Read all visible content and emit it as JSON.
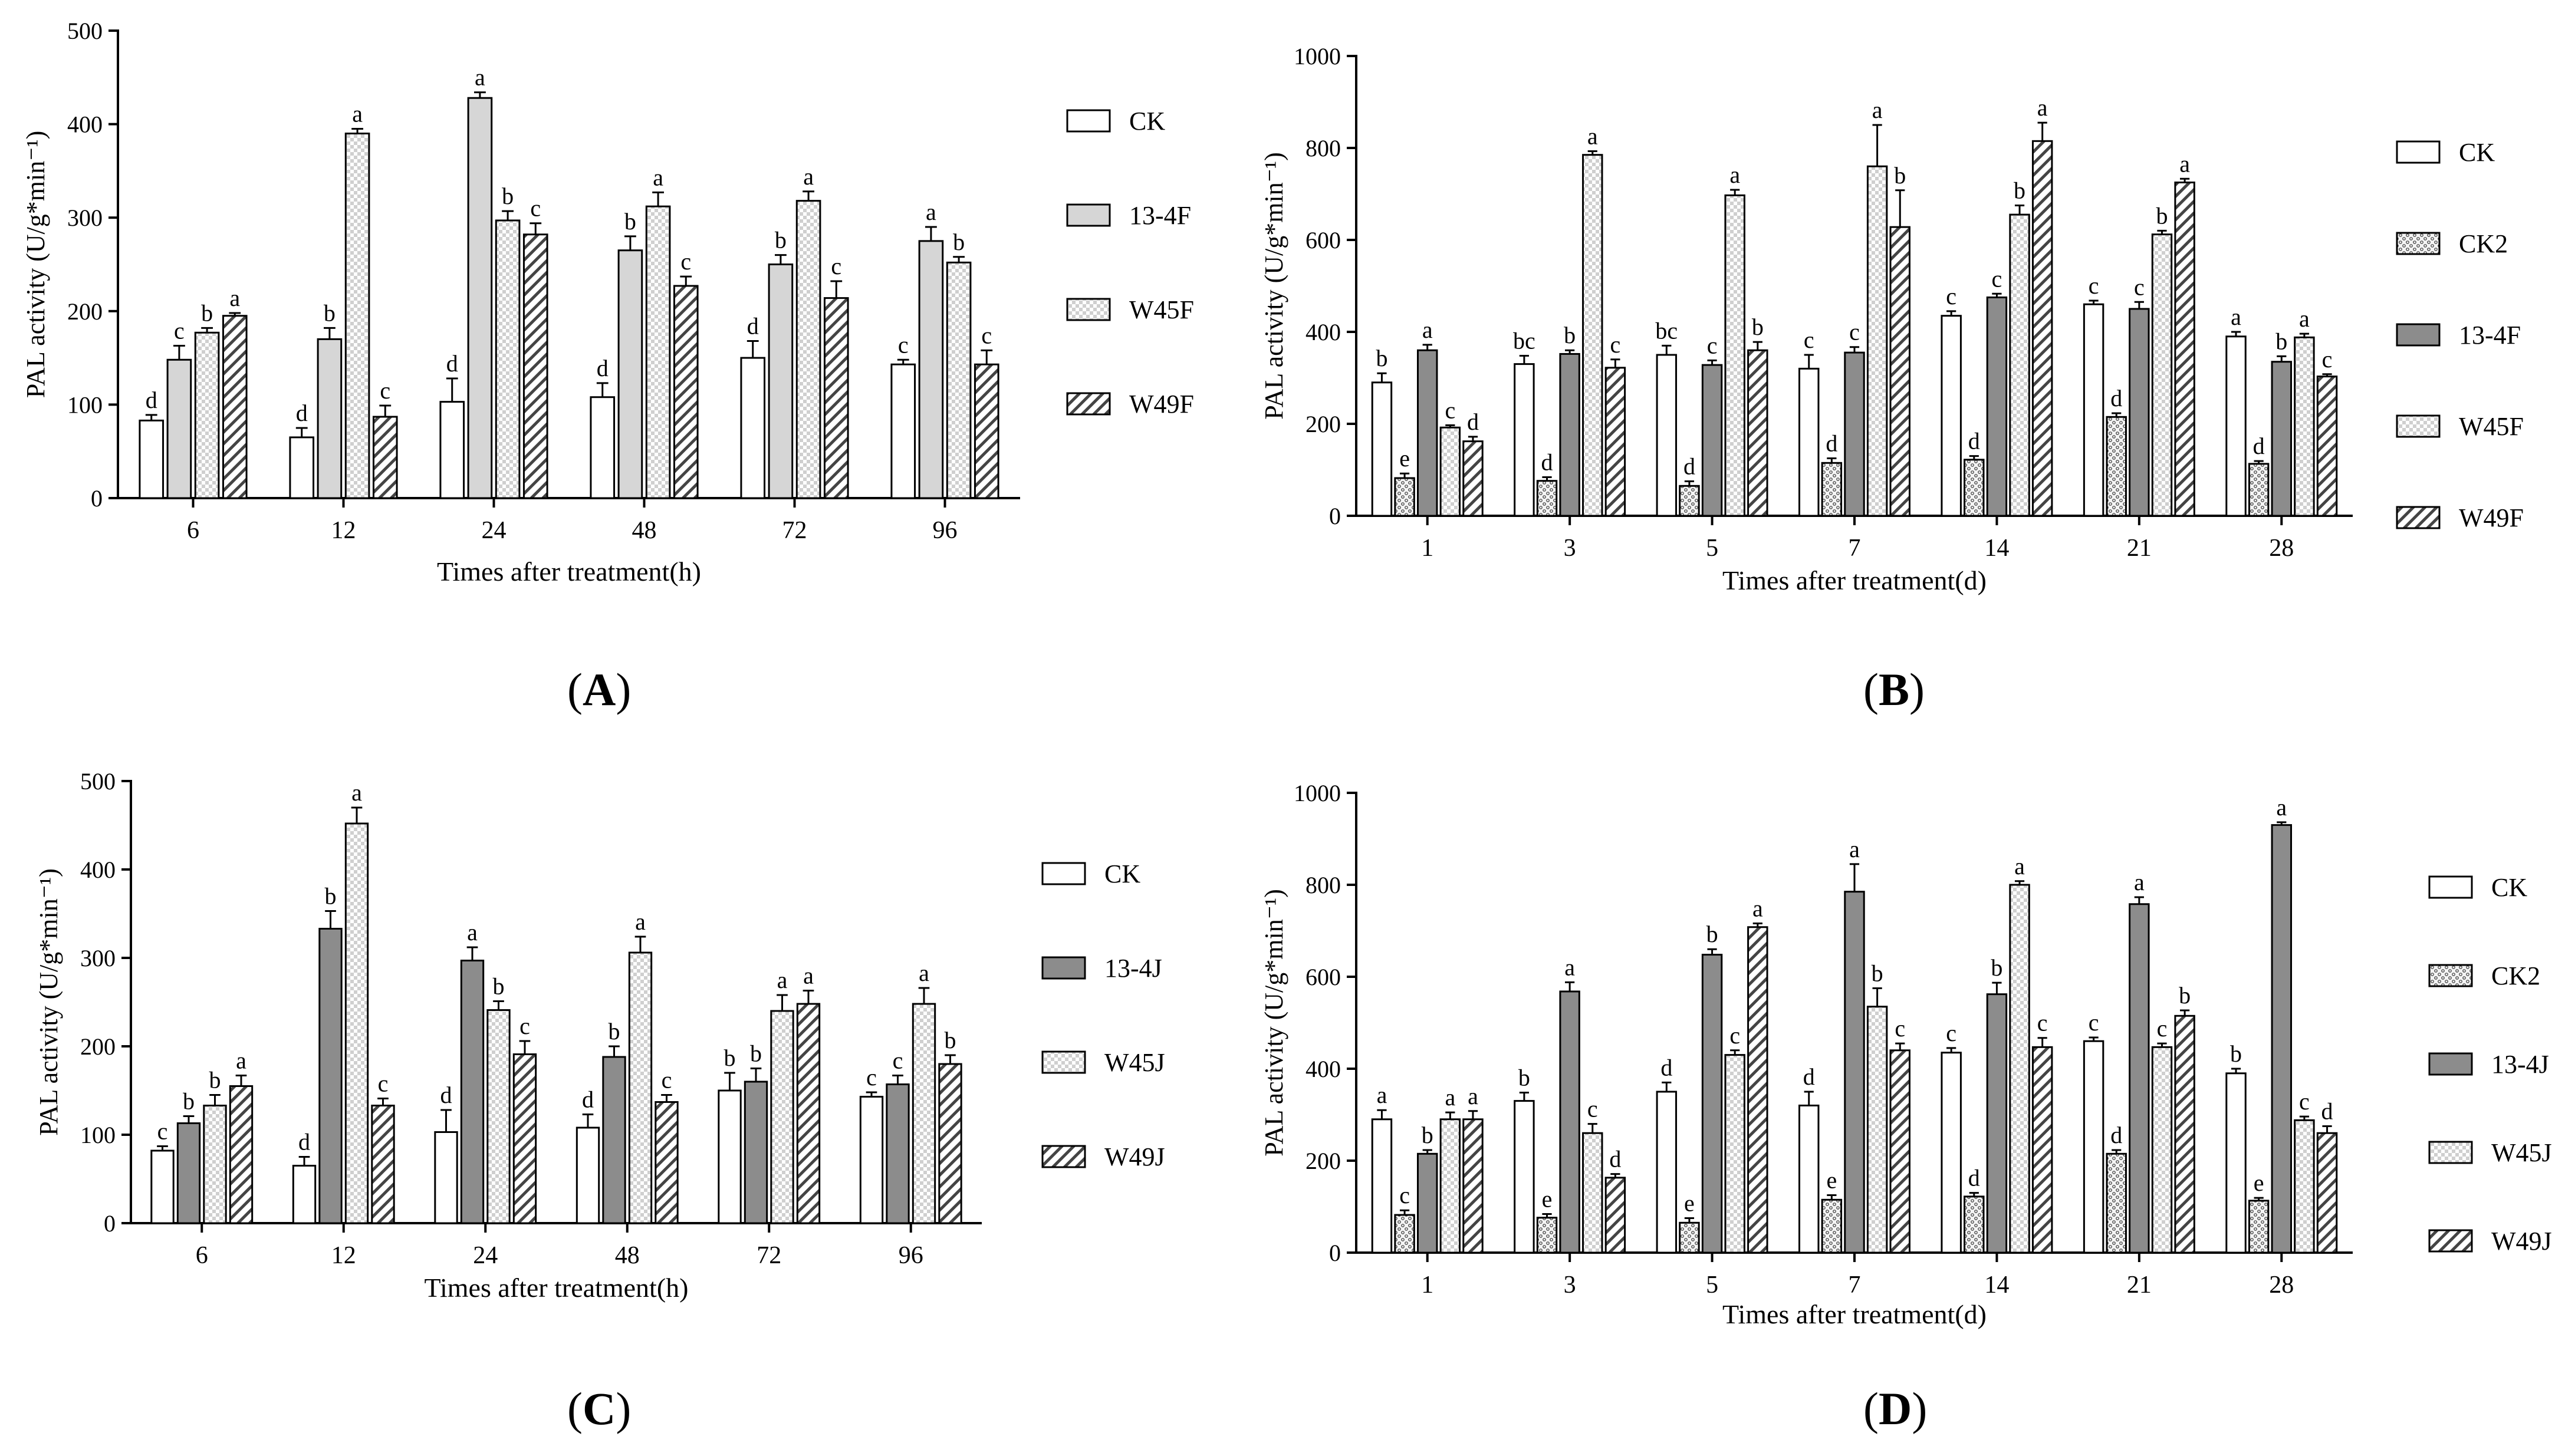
{
  "colors": {
    "axis": "#000000",
    "white_fill": "#ffffff",
    "gray_light": "#d6d6d6",
    "gray_dark": "#8c8c8c",
    "dots_bg": "#f4f4f4"
  },
  "panels": [
    {
      "label": "A",
      "label_open": "(",
      "label_close": ")"
    },
    {
      "label": "B",
      "label_open": "(",
      "label_close": ")"
    },
    {
      "label": "C",
      "label_open": "(",
      "label_close": ")"
    },
    {
      "label": "D",
      "label_open": "(",
      "label_close": ")"
    }
  ],
  "chart_data": [
    {
      "id": "A",
      "type": "bar",
      "ylabel": "PAL activity (U/g*min⁻¹)",
      "xlabel": "Times after treatment(h)",
      "ylim": [
        0,
        500
      ],
      "yticks": [
        0,
        100,
        200,
        300,
        400,
        500
      ],
      "categories": [
        "6",
        "12",
        "24",
        "48",
        "72",
        "96"
      ],
      "series": [
        {
          "name": "CK",
          "pattern": "white",
          "values": [
            83,
            65,
            103,
            108,
            150,
            143
          ],
          "errors": [
            6,
            10,
            25,
            15,
            18,
            5
          ],
          "letters": [
            "d",
            "d",
            "d",
            "d",
            "d",
            "c"
          ]
        },
        {
          "name": "13-4F",
          "pattern": "lightgray",
          "values": [
            148,
            170,
            428,
            265,
            250,
            275
          ],
          "errors": [
            15,
            12,
            6,
            15,
            10,
            15
          ],
          "letters": [
            "c",
            "b",
            "a",
            "b",
            "b",
            "a"
          ]
        },
        {
          "name": "W45F",
          "pattern": "checker",
          "values": [
            177,
            390,
            297,
            312,
            318,
            252
          ],
          "errors": [
            5,
            5,
            10,
            15,
            10,
            6
          ],
          "letters": [
            "b",
            "a",
            "b",
            "a",
            "a",
            "b"
          ]
        },
        {
          "name": "W49F",
          "pattern": "hatch",
          "values": [
            195,
            87,
            282,
            227,
            214,
            143
          ],
          "errors": [
            3,
            12,
            12,
            10,
            18,
            15
          ],
          "letters": [
            "a",
            "c",
            "c",
            "c",
            "c",
            "c"
          ]
        }
      ]
    },
    {
      "id": "B",
      "type": "bar",
      "ylabel": "PAL activity (U/g*min⁻¹)",
      "xlabel": "Times after treatment(d)",
      "ylim": [
        0,
        1000
      ],
      "yticks": [
        0,
        200,
        400,
        600,
        800,
        1000
      ],
      "categories": [
        "1",
        "3",
        "5",
        "7",
        "14",
        "21",
        "28"
      ],
      "series": [
        {
          "name": "CK",
          "pattern": "white",
          "values": [
            290,
            330,
            350,
            320,
            435,
            460,
            390
          ],
          "errors": [
            20,
            18,
            20,
            30,
            10,
            8,
            10
          ],
          "letters": [
            "b",
            "bc",
            "bc",
            "c",
            "c",
            "c",
            "a"
          ]
        },
        {
          "name": "CK2",
          "pattern": "dots",
          "values": [
            82,
            76,
            65,
            115,
            122,
            215,
            113
          ],
          "errors": [
            10,
            8,
            10,
            10,
            8,
            8,
            6
          ],
          "letters": [
            "e",
            "d",
            "d",
            "d",
            "d",
            "d",
            "d"
          ]
        },
        {
          "name": "13-4F",
          "pattern": "darkgray",
          "values": [
            360,
            352,
            328,
            355,
            475,
            450,
            335
          ],
          "errors": [
            12,
            8,
            10,
            12,
            8,
            15,
            12
          ],
          "letters": [
            "a",
            "b",
            "c",
            "c",
            "c",
            "c",
            "b"
          ]
        },
        {
          "name": "W45F",
          "pattern": "checker",
          "values": [
            192,
            785,
            697,
            760,
            655,
            612,
            388
          ],
          "errors": [
            5,
            8,
            12,
            90,
            20,
            8,
            8
          ],
          "letters": [
            "c",
            "a",
            "a",
            "a",
            "b",
            "b",
            "a"
          ]
        },
        {
          "name": "W49F",
          "pattern": "hatch",
          "values": [
            162,
            322,
            360,
            628,
            815,
            725,
            303
          ],
          "errors": [
            10,
            18,
            18,
            80,
            40,
            8,
            5
          ],
          "letters": [
            "d",
            "c",
            "b",
            "b",
            "a",
            "a",
            "c"
          ]
        }
      ]
    },
    {
      "id": "C",
      "type": "bar",
      "ylabel": "PAL activity (U/g*min⁻¹)",
      "xlabel": "Times after treatment(h)",
      "ylim": [
        0,
        500
      ],
      "yticks": [
        0,
        100,
        200,
        300,
        400,
        500
      ],
      "categories": [
        "6",
        "12",
        "24",
        "48",
        "72",
        "96"
      ],
      "series": [
        {
          "name": "CK",
          "pattern": "white",
          "values": [
            82,
            65,
            103,
            108,
            150,
            143
          ],
          "errors": [
            5,
            10,
            25,
            15,
            20,
            5
          ],
          "letters": [
            "c",
            "d",
            "d",
            "d",
            "b",
            "c"
          ]
        },
        {
          "name": "13-4J",
          "pattern": "darkgray",
          "values": [
            113,
            333,
            297,
            188,
            160,
            157
          ],
          "errors": [
            8,
            20,
            15,
            12,
            15,
            10
          ],
          "letters": [
            "b",
            "b",
            "a",
            "b",
            "b",
            "c"
          ]
        },
        {
          "name": "W45J",
          "pattern": "checker",
          "values": [
            133,
            452,
            241,
            306,
            240,
            248
          ],
          "errors": [
            12,
            18,
            10,
            18,
            18,
            18
          ],
          "letters": [
            "b",
            "a",
            "b",
            "a",
            "a",
            "a"
          ]
        },
        {
          "name": "W49J",
          "pattern": "hatch",
          "values": [
            155,
            133,
            191,
            137,
            248,
            180
          ],
          "errors": [
            12,
            8,
            15,
            8,
            15,
            10
          ],
          "letters": [
            "a",
            "c",
            "c",
            "c",
            "a",
            "b"
          ]
        }
      ]
    },
    {
      "id": "D",
      "type": "bar",
      "ylabel": "PAL activity (U/g*min⁻¹)",
      "xlabel": "Times after treatment(d)",
      "ylim": [
        0,
        1000
      ],
      "yticks": [
        0,
        200,
        400,
        600,
        800,
        1000
      ],
      "categories": [
        "1",
        "3",
        "5",
        "7",
        "14",
        "21",
        "28"
      ],
      "series": [
        {
          "name": "CK",
          "pattern": "white",
          "values": [
            290,
            330,
            350,
            320,
            435,
            460,
            390
          ],
          "errors": [
            20,
            18,
            20,
            30,
            10,
            8,
            10
          ],
          "letters": [
            "a",
            "b",
            "d",
            "d",
            "c",
            "c",
            "b"
          ]
        },
        {
          "name": "CK2",
          "pattern": "dots",
          "values": [
            82,
            76,
            65,
            115,
            122,
            215,
            113
          ],
          "errors": [
            10,
            8,
            10,
            10,
            8,
            8,
            6
          ],
          "letters": [
            "c",
            "e",
            "e",
            "e",
            "d",
            "d",
            "e"
          ]
        },
        {
          "name": "13-4J",
          "pattern": "darkgray",
          "values": [
            215,
            568,
            648,
            785,
            562,
            758,
            930
          ],
          "errors": [
            8,
            20,
            12,
            60,
            25,
            15,
            6
          ],
          "letters": [
            "b",
            "a",
            "b",
            "a",
            "b",
            "a",
            "a"
          ]
        },
        {
          "name": "W45J",
          "pattern": "checker",
          "values": [
            290,
            260,
            430,
            535,
            800,
            447,
            288
          ],
          "errors": [
            15,
            20,
            10,
            40,
            8,
            8,
            8
          ],
          "letters": [
            "a",
            "c",
            "c",
            "b",
            "a",
            "c",
            "c"
          ]
        },
        {
          "name": "W49J",
          "pattern": "hatch",
          "values": [
            290,
            163,
            708,
            440,
            447,
            515,
            260
          ],
          "errors": [
            18,
            8,
            8,
            15,
            20,
            12,
            15
          ],
          "letters": [
            "a",
            "d",
            "a",
            "c",
            "c",
            "b",
            "d"
          ]
        }
      ]
    }
  ]
}
